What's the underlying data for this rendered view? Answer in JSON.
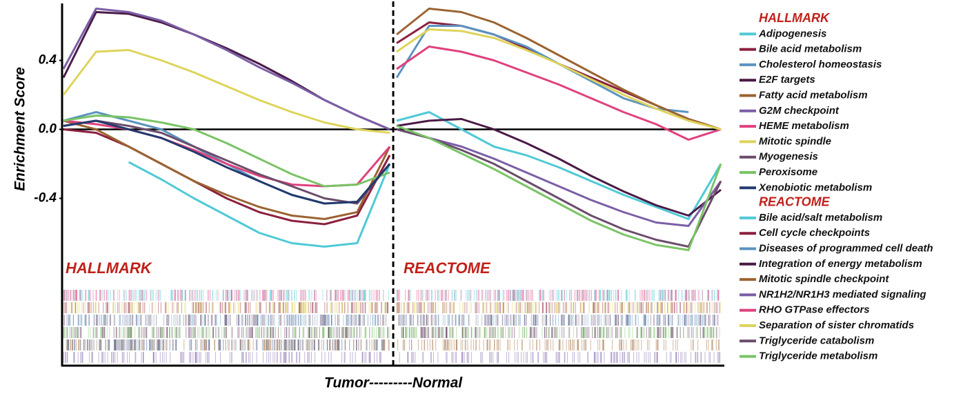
{
  "chart_data": [
    {
      "type": "line",
      "title": "HALLMARK",
      "ylabel": "Enrichment Score",
      "xlabel": "Tumor---------Normal",
      "x": [
        0,
        10,
        20,
        30,
        40,
        50,
        60,
        70,
        80,
        90,
        100
      ],
      "xlim": [
        0,
        100
      ],
      "ylim": [
        -1.37,
        0.73
      ],
      "yticks": [
        0.4,
        {
          "value": 0,
          "label": "0.0"
        },
        -0.4
      ],
      "series": [
        {
          "name": "Adipogenesis",
          "color": "#4fc9d6",
          "values": [
            null,
            null,
            -0.19,
            -0.29,
            -0.4,
            -0.5,
            -0.6,
            -0.66,
            -0.68,
            -0.66,
            -0.2
          ]
        },
        {
          "name": "Bile acid metabolism",
          "color": "#8b1f3e",
          "values": [
            0.0,
            -0.02,
            -0.1,
            -0.2,
            -0.3,
            -0.4,
            -0.48,
            -0.53,
            -0.55,
            -0.5,
            -0.15
          ]
        },
        {
          "name": "Cholesterol homeostasis",
          "color": "#5b93c0",
          "values": [
            0.05,
            0.1,
            0.05,
            0.0,
            -0.1,
            -0.2,
            -0.3,
            -0.38,
            -0.43,
            -0.42,
            -0.2
          ]
        },
        {
          "name": "E2F targets",
          "color": "#4a1a46",
          "values": [
            0.3,
            0.68,
            0.67,
            0.62,
            0.55,
            0.47,
            0.38,
            0.28,
            0.17,
            0.08,
            0.0
          ]
        },
        {
          "name": "Fatty acid metabolism",
          "color": "#9b6331",
          "values": [
            0.05,
            0.0,
            -0.1,
            -0.2,
            -0.3,
            -0.38,
            -0.45,
            -0.5,
            -0.52,
            -0.48,
            -0.1
          ]
        },
        {
          "name": "G2M checkpoint",
          "color": "#7b5ea6",
          "values": [
            0.35,
            0.7,
            0.68,
            0.63,
            0.55,
            0.46,
            0.36,
            0.27,
            0.17,
            0.08,
            0.0
          ]
        },
        {
          "name": "HEME metabolism",
          "color": "#e0417e",
          "values": [
            0.05,
            0.03,
            0.0,
            -0.05,
            -0.12,
            -0.2,
            -0.27,
            -0.32,
            -0.33,
            -0.32,
            -0.1
          ]
        },
        {
          "name": "Mitotic spindle",
          "color": "#ddd45a",
          "values": [
            0.2,
            0.45,
            0.46,
            0.4,
            0.33,
            0.25,
            0.17,
            0.1,
            0.04,
            0.0,
            -0.02
          ]
        },
        {
          "name": "Myogenesis",
          "color": "#6b4d6b",
          "values": [
            0.02,
            0.05,
            0.02,
            -0.02,
            -0.1,
            -0.18,
            -0.26,
            -0.33,
            -0.4,
            -0.43,
            -0.2
          ]
        },
        {
          "name": "Peroxisome",
          "color": "#79c465",
          "values": [
            0.05,
            0.08,
            0.07,
            0.04,
            0.0,
            -0.08,
            -0.17,
            -0.26,
            -0.33,
            -0.32,
            -0.25
          ]
        },
        {
          "name": "Xenobiotic metabolism",
          "color": "#233a6e",
          "values": [
            0.02,
            0.05,
            0.0,
            -0.05,
            -0.13,
            -0.22,
            -0.3,
            -0.38,
            -0.43,
            -0.42,
            -0.2
          ]
        }
      ]
    },
    {
      "type": "line",
      "title": "REACTOME",
      "x": [
        0,
        10,
        20,
        30,
        40,
        50,
        60,
        70,
        80,
        90,
        100
      ],
      "xlim": [
        0,
        100
      ],
      "ylim": [
        -1.37,
        0.73
      ],
      "series": [
        {
          "name": "Bile acid/salt metabolism",
          "color": "#4fc9d6",
          "values": [
            0.05,
            0.1,
            0.0,
            -0.1,
            -0.15,
            -0.22,
            -0.3,
            -0.38,
            -0.45,
            -0.52,
            -0.2
          ]
        },
        {
          "name": "Cell cycle checkpoints",
          "color": "#8b1f3e",
          "values": [
            0.5,
            0.62,
            0.6,
            0.55,
            0.47,
            0.38,
            0.3,
            0.22,
            0.14,
            0.06,
            0.0
          ]
        },
        {
          "name": "Diseases of programmed cell death",
          "color": "#5b93c0",
          "values": [
            0.3,
            0.6,
            0.6,
            0.55,
            0.48,
            0.38,
            0.28,
            0.18,
            0.12,
            0.1,
            null
          ]
        },
        {
          "name": "Integration of energy metabolism",
          "color": "#4a1a46",
          "values": [
            0.02,
            0.05,
            0.06,
            0.0,
            -0.08,
            -0.17,
            -0.27,
            -0.36,
            -0.44,
            -0.5,
            -0.35
          ]
        },
        {
          "name": "Mitotic spindle checkpoint",
          "color": "#9b6331",
          "values": [
            0.55,
            0.7,
            0.68,
            0.62,
            0.53,
            0.43,
            0.33,
            0.23,
            0.14,
            0.06,
            0.0
          ]
        },
        {
          "name": "NR1H2/NR1H3 mediated signaling",
          "color": "#7b5ea6",
          "values": [
            null,
            -0.05,
            -0.1,
            -0.17,
            -0.25,
            -0.33,
            -0.41,
            -0.48,
            -0.54,
            -0.56,
            -0.3
          ]
        },
        {
          "name": "RHO GTPase effectors",
          "color": "#e0417e",
          "values": [
            0.35,
            0.48,
            0.45,
            0.4,
            0.33,
            0.26,
            0.18,
            0.1,
            0.03,
            -0.06,
            0.0
          ]
        },
        {
          "name": "Separation of sister chromatids",
          "color": "#ddd45a",
          "values": [
            0.45,
            0.58,
            0.57,
            0.53,
            0.46,
            0.38,
            0.29,
            0.2,
            0.12,
            0.05,
            0.0
          ]
        },
        {
          "name": "Triglyceride catabolism",
          "color": "#6b4d6b",
          "values": [
            0.0,
            -0.05,
            -0.12,
            -0.2,
            -0.3,
            -0.4,
            -0.5,
            -0.58,
            -0.64,
            -0.68,
            -0.3
          ]
        },
        {
          "name": "Triglyceride metabolism",
          "color": "#79c465",
          "values": [
            0.02,
            -0.05,
            -0.14,
            -0.23,
            -0.33,
            -0.43,
            -0.53,
            -0.61,
            -0.67,
            -0.7,
            -0.2
          ]
        }
      ]
    }
  ]
}
